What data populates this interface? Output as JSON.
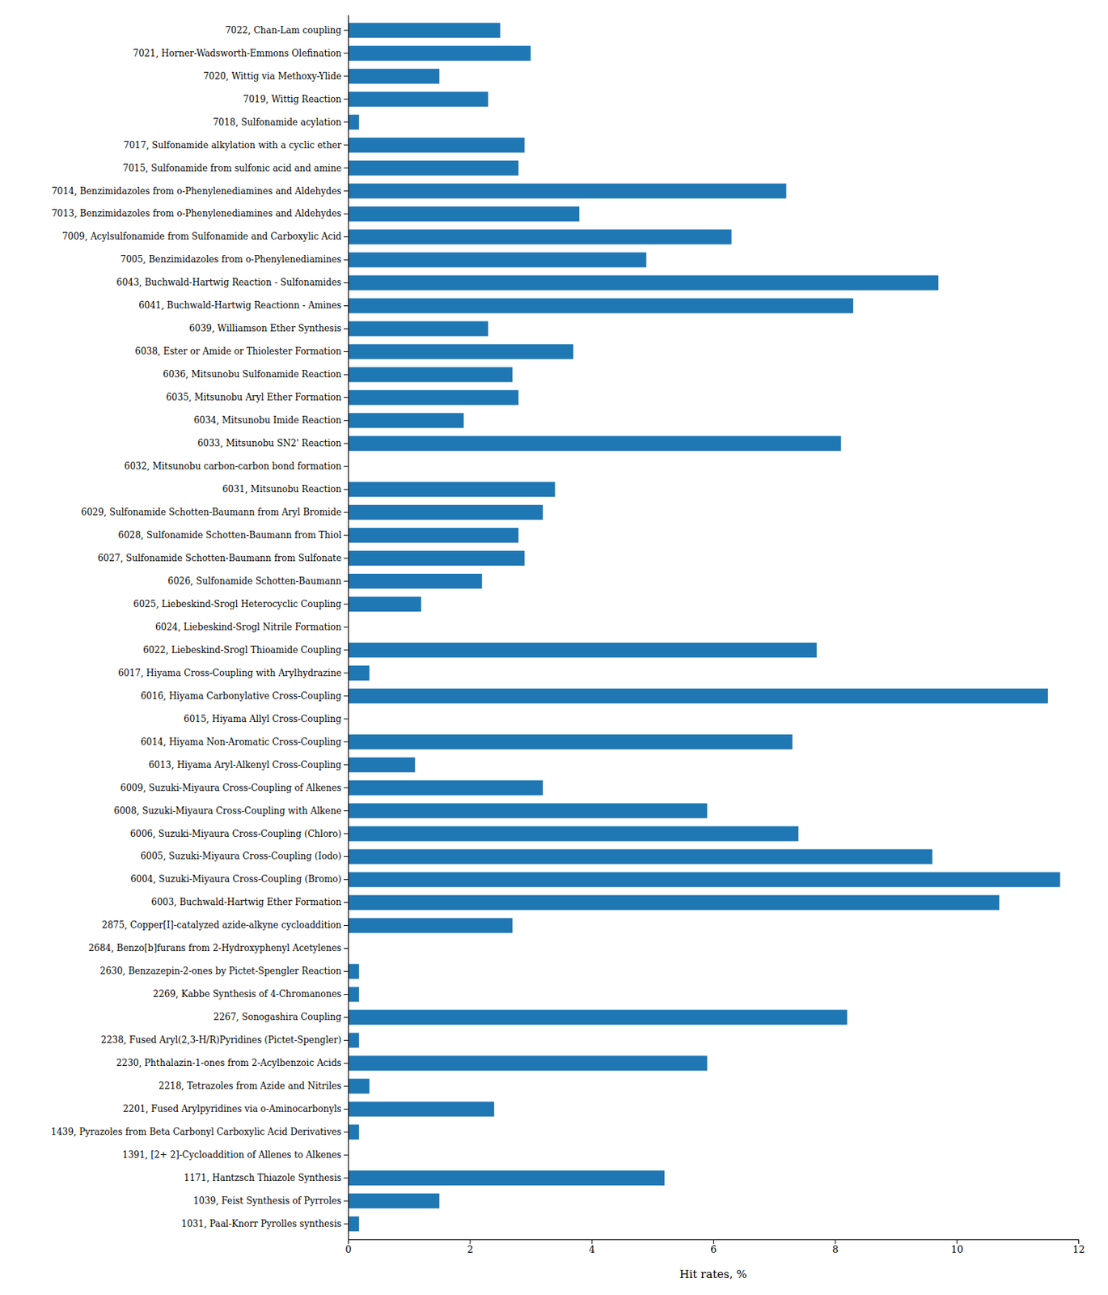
{
  "chart_data": {
    "type": "bar",
    "orientation": "horizontal",
    "categories": [
      "7022, Chan-Lam coupling",
      "7021, Horner-Wadsworth-Emmons Olefination",
      "7020, Wittig via Methoxy-Ylide",
      "7019, Wittig Reaction",
      "7018, Sulfonamide acylation",
      "7017, Sulfonamide alkylation with a cyclic ether",
      "7015, Sulfonamide from sulfonic acid and amine",
      "7014, Benzimidazoles from o-Phenylenediamines and Aldehydes",
      "7013, Benzimidazoles from o-Phenylenediamines and Aldehydes",
      "7009, Acylsulfonamide from Sulfonamide and Carboxylic Acid",
      "7005, Benzimidazoles from o-Phenylenediamines",
      "6043, Buchwald-Hartwig Reaction - Sulfonamides",
      "6041, Buchwald-Hartwig Reactionn - Amines",
      "6039, Williamson Ether Synthesis",
      "6038, Ester or Amide or Thiolester Formation",
      "6036, Mitsunobu Sulfonamide Reaction",
      "6035, Mitsunobu Aryl Ether Formation",
      "6034, Mitsunobu Imide Reaction",
      "6033, Mitsunobu SN2' Reaction",
      "6032, Mitsunobu carbon-carbon bond formation",
      "6031, Mitsunobu Reaction",
      "6029, Sulfonamide Schotten-Baumann from Aryl Bromide",
      "6028, Sulfonamide Schotten-Baumann from Thiol",
      "6027, Sulfonamide Schotten-Baumann from Sulfonate",
      "6026, Sulfonamide Schotten-Baumann",
      "6025, Liebeskind-Srogl Heterocyclic Coupling",
      "6024, Liebeskind-Srogl Nitrile Formation",
      "6022, Liebeskind-Srogl Thioamide Coupling",
      "6017, Hiyama Cross-Coupling with Arylhydrazine",
      "6016, Hiyama Carbonylative Cross-Coupling",
      "6015, Hiyama Allyl Cross-Coupling",
      "6014, Hiyama Non-Aromatic Cross-Coupling",
      "6013, Hiyama Aryl-Alkenyl Cross-Coupling",
      "6009, Suzuki-Miyaura Cross-Coupling of Alkenes",
      "6008, Suzuki-Miyaura Cross-Coupling with Alkene",
      "6006, Suzuki-Miyaura Cross-Coupling (Chloro)",
      "6005, Suzuki-Miyaura Cross-Coupling (Iodo)",
      "6004, Suzuki-Miyaura Cross-Coupling (Bromo)",
      "6003, Buchwald-Hartwig Ether Formation",
      "2875, Copper[I]-catalyzed azide-alkyne cycloaddition",
      "2684, Benzo[b]furans from 2-Hydroxyphenyl Acetylenes",
      "2630, Benzazepin-2-ones by Pictet-Spengler Reaction",
      "2269, Kabbe Synthesis of 4-Chromanones",
      "2267, Sonogashira Coupling",
      "2238, Fused Aryl(2,3-H/R)Pyridines (Pictet-Spengler)",
      "2230, Phthalazin-1-ones from 2-Acylbenzoic Acids",
      "2218, Tetrazoles from Azide and Nitriles",
      "2201, Fused Arylpyridines via o-Aminocarbonyls",
      "1439, Pyrazoles from Beta Carbonyl Carboxylic Acid Derivatives",
      "1391, [2+ 2]-Cycloaddition of Allenes to Alkenes",
      "1171, Hantzsch Thiazole Synthesis",
      "1039, Feist Synthesis of Pyrroles",
      "1031, Paal-Knorr Pyrolles synthesis"
    ],
    "values": [
      2.5,
      3.0,
      1.5,
      2.3,
      0.18,
      2.9,
      2.8,
      7.2,
      3.8,
      6.3,
      4.9,
      9.7,
      8.3,
      2.3,
      3.7,
      2.7,
      2.8,
      1.9,
      8.1,
      0.0,
      3.4,
      3.2,
      2.8,
      2.9,
      2.2,
      1.2,
      0.0,
      7.7,
      0.35,
      11.5,
      0.0,
      7.3,
      1.1,
      3.2,
      5.9,
      7.4,
      9.6,
      11.7,
      10.7,
      2.7,
      0.0,
      0.18,
      0.18,
      8.2,
      0.18,
      5.9,
      0.35,
      2.4,
      0.18,
      0.0,
      5.2,
      1.5,
      0.18
    ],
    "xlabel": "Hit rates, %",
    "xlim": [
      0,
      12
    ],
    "xticks": [
      0,
      2,
      4,
      6,
      8,
      10,
      12
    ]
  }
}
